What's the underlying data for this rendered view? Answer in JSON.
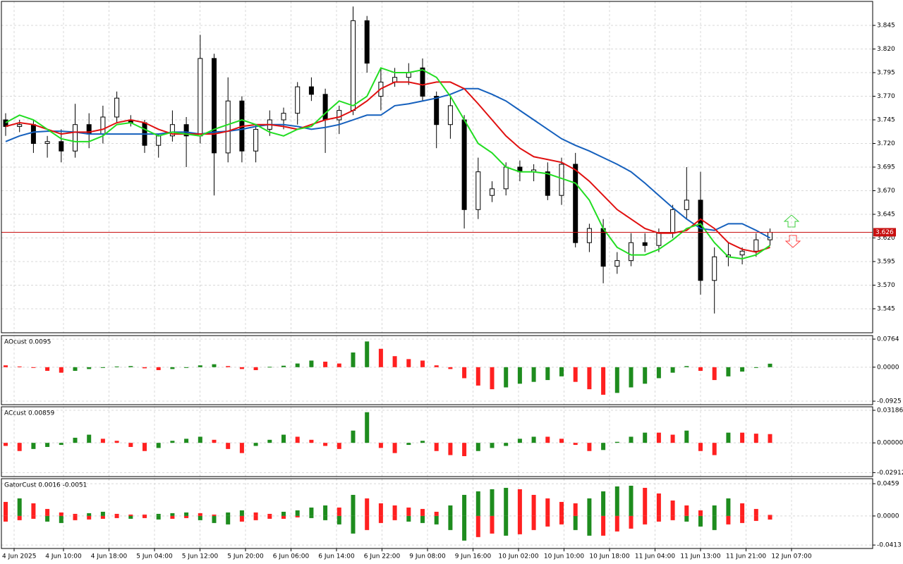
{
  "chart_data": [
    {
      "type": "candlestick",
      "open": [
        3.745,
        3.738,
        3.74,
        3.72,
        3.722,
        3.712,
        3.74,
        3.73,
        3.748,
        3.745,
        3.742,
        3.718,
        3.728,
        3.74,
        3.728,
        3.81,
        3.71,
        3.765,
        3.712,
        3.735,
        3.745,
        3.752,
        3.78,
        3.772,
        3.745,
        3.755,
        3.85,
        3.77,
        3.785,
        3.79,
        3.8,
        3.77,
        3.74,
        3.745,
        3.65,
        3.665,
        3.672,
        3.695,
        3.69,
        3.69,
        3.665,
        3.698,
        3.615,
        3.63,
        3.59,
        3.596,
        3.615,
        3.612,
        3.625,
        3.65,
        3.66,
        3.575,
        3.6,
        3.602,
        3.606,
        3.618
      ],
      "high": [
        3.752,
        3.745,
        3.745,
        3.728,
        3.735,
        3.762,
        3.752,
        3.76,
        3.775,
        3.75,
        3.745,
        3.73,
        3.755,
        3.748,
        3.835,
        3.815,
        3.79,
        3.77,
        3.74,
        3.755,
        3.758,
        3.785,
        3.79,
        3.778,
        3.76,
        3.865,
        3.855,
        3.8,
        3.8,
        3.805,
        3.81,
        3.775,
        3.77,
        3.75,
        3.705,
        3.68,
        3.7,
        3.702,
        3.698,
        3.7,
        3.705,
        3.71,
        3.635,
        3.64,
        3.605,
        3.625,
        3.625,
        3.63,
        3.655,
        3.695,
        3.69,
        3.61,
        3.615,
        3.61,
        3.625,
        3.63
      ],
      "low": [
        3.728,
        3.732,
        3.71,
        3.705,
        3.7,
        3.705,
        3.715,
        3.72,
        3.742,
        3.738,
        3.71,
        3.705,
        3.722,
        3.695,
        3.72,
        3.665,
        3.7,
        3.7,
        3.7,
        3.728,
        3.735,
        3.74,
        3.765,
        3.71,
        3.73,
        3.75,
        3.795,
        3.755,
        3.78,
        3.782,
        3.765,
        3.715,
        3.725,
        3.63,
        3.64,
        3.658,
        3.665,
        3.68,
        3.68,
        3.66,
        3.655,
        3.61,
        3.605,
        3.572,
        3.582,
        3.59,
        3.605,
        3.605,
        3.62,
        3.64,
        3.56,
        3.54,
        3.59,
        3.592,
        3.6,
        3.612
      ],
      "close": [
        3.738,
        3.74,
        3.72,
        3.722,
        3.712,
        3.74,
        3.73,
        3.748,
        3.768,
        3.742,
        3.718,
        3.728,
        3.74,
        3.728,
        3.81,
        3.71,
        3.765,
        3.712,
        3.735,
        3.745,
        3.752,
        3.78,
        3.772,
        3.745,
        3.755,
        3.85,
        3.805,
        3.785,
        3.79,
        3.795,
        3.77,
        3.74,
        3.76,
        3.65,
        3.69,
        3.672,
        3.695,
        3.69,
        3.692,
        3.665,
        3.698,
        3.615,
        3.63,
        3.59,
        3.596,
        3.615,
        3.612,
        3.625,
        3.65,
        3.66,
        3.575,
        3.6,
        3.602,
        3.606,
        3.618,
        3.626
      ],
      "series": [
        {
          "color": "#1560bd",
          "values": [
            3.722,
            3.728,
            3.732,
            3.733,
            3.733,
            3.732,
            3.73,
            3.73,
            3.73,
            3.73,
            3.73,
            3.73,
            3.732,
            3.732,
            3.73,
            3.732,
            3.733,
            3.735,
            3.738,
            3.74,
            3.74,
            3.738,
            3.735,
            3.737,
            3.74,
            3.745,
            3.75,
            3.75,
            3.76,
            3.762,
            3.765,
            3.768,
            3.772,
            3.778,
            3.778,
            3.772,
            3.765,
            3.755,
            3.745,
            3.735,
            3.725,
            3.718,
            3.712,
            3.705,
            3.698,
            3.69,
            3.678,
            3.665,
            3.652,
            3.64,
            3.63,
            3.628,
            3.635,
            3.635,
            3.628,
            3.62
          ]
        },
        {
          "color": "#e01010",
          "values": [
            3.738,
            3.742,
            3.74,
            3.735,
            3.73,
            3.732,
            3.732,
            3.735,
            3.742,
            3.745,
            3.742,
            3.735,
            3.73,
            3.73,
            3.73,
            3.73,
            3.733,
            3.738,
            3.74,
            3.74,
            3.738,
            3.735,
            3.74,
            3.745,
            3.748,
            3.755,
            3.765,
            3.778,
            3.785,
            3.785,
            3.782,
            3.785,
            3.785,
            3.778,
            3.762,
            3.745,
            3.728,
            3.715,
            3.706,
            3.703,
            3.7,
            3.692,
            3.68,
            3.665,
            3.65,
            3.64,
            3.63,
            3.625,
            3.625,
            3.628,
            3.64,
            3.63,
            3.615,
            3.608,
            3.605,
            3.61
          ]
        },
        {
          "color": "#22dd22",
          "values": [
            3.742,
            3.75,
            3.745,
            3.735,
            3.725,
            3.722,
            3.722,
            3.728,
            3.74,
            3.742,
            3.735,
            3.728,
            3.732,
            3.73,
            3.728,
            3.735,
            3.74,
            3.745,
            3.74,
            3.732,
            3.728,
            3.735,
            3.738,
            3.752,
            3.765,
            3.76,
            3.77,
            3.8,
            3.795,
            3.795,
            3.798,
            3.79,
            3.77,
            3.745,
            3.72,
            3.71,
            3.695,
            3.69,
            3.69,
            3.688,
            3.683,
            3.678,
            3.66,
            3.63,
            3.61,
            3.602,
            3.602,
            3.608,
            3.618,
            3.63,
            3.635,
            3.615,
            3.6,
            3.598,
            3.602,
            3.612
          ]
        }
      ],
      "up_color": "#ffffff",
      "down_color": "#000000",
      "last_price": 3.626,
      "last_price_color": "#c81010",
      "ylim": [
        3.5196,
        3.8704
      ],
      "yticks": [
        3.845,
        {
          "value": 3.82,
          "label": "3.820"
        },
        3.795,
        {
          "value": 3.77,
          "label": "3.770"
        },
        3.745,
        {
          "value": 3.72,
          "label": "3.720"
        },
        3.695,
        {
          "value": 3.67,
          "label": "3.670"
        },
        3.645,
        {
          "value": 3.62,
          "label": "3.620"
        },
        3.595,
        {
          "value": 3.57,
          "label": "3.570"
        },
        3.545
      ],
      "time_labels": [
        "4 Jun 2025",
        "4 Jun 10:00",
        "4 Jun 18:00",
        "5 Jun 04:00",
        "5 Jun 12:00",
        "5 Jun 20:00",
        "6 Jun 06:00",
        "6 Jun 14:00",
        "6 Jun 22:00",
        "9 Jun 08:00",
        "9 Jun 16:00",
        "10 Jun 02:00",
        "10 Jun 10:00",
        "10 Jun 18:00",
        "11 Jun 04:00",
        "11 Jun 13:00",
        "11 Jun 21:00",
        "12 Jun 07:00"
      ],
      "grid": true
    },
    {
      "type": "histogram",
      "title": "AOcust 0.0095",
      "series": [
        {
          "values": [
            0.005,
            0.002,
            -0.002,
            -0.01,
            -0.015,
            -0.01,
            -0.005,
            -0.002,
            0.002,
            0.003,
            -0.003,
            -0.008,
            -0.005,
            -0.002,
            0.005,
            0.008,
            0.003,
            -0.005,
            -0.008,
            0.001,
            0.004,
            0.01,
            0.018,
            0.015,
            0.01,
            0.04,
            0.07,
            0.05,
            0.03,
            0.022,
            0.018,
            0.005,
            -0.005,
            -0.03,
            -0.05,
            -0.06,
            -0.055,
            -0.045,
            -0.04,
            -0.035,
            -0.025,
            -0.04,
            -0.06,
            -0.075,
            -0.07,
            -0.055,
            -0.045,
            -0.03,
            -0.015,
            0.003,
            -0.01,
            -0.035,
            -0.025,
            -0.012,
            -0.002,
            0.0095
          ]
        }
      ],
      "up_color": "#1e8c1e",
      "down_color": "#ff2020",
      "ylim": [
        -0.102,
        0.086
      ],
      "yticks": [
        0.0764,
        {
          "value": 0,
          "label": "0.0000"
        },
        -0.0925
      ],
      "grid": true
    },
    {
      "type": "histogram",
      "title": "ACcust 0.00859",
      "series": [
        {
          "values": [
            -0.003,
            -0.008,
            -0.006,
            -0.004,
            -0.002,
            0.005,
            0.008,
            0.004,
            0.002,
            -0.004,
            -0.008,
            -0.005,
            0.002,
            0.004,
            0.006,
            0.003,
            -0.006,
            -0.01,
            -0.003,
            0.003,
            0.008,
            0.006,
            0.003,
            -0.003,
            -0.006,
            0.012,
            0.03,
            -0.005,
            -0.01,
            -0.002,
            0.002,
            -0.008,
            -0.012,
            -0.013,
            -0.008,
            -0.005,
            -0.003,
            0.004,
            0.006,
            0.006,
            0.004,
            -0.002,
            -0.008,
            -0.007,
            0.001,
            0.006,
            0.01,
            0.01,
            0.008,
            0.012,
            -0.008,
            -0.012,
            0.01,
            0.01,
            0.009,
            0.00859
          ]
        }
      ],
      "up_color": "#1e8c1e",
      "down_color": "#ff2020",
      "ylim": [
        -0.033,
        0.0353
      ],
      "yticks": [
        0.03186,
        {
          "value": 0,
          "label": "0.00000"
        },
        -0.02912
      ],
      "grid": true
    },
    {
      "type": "histogram",
      "title": "GatorCust 0.0016 -0.0051",
      "series": [
        {
          "values": [
            0.02,
            0.025,
            0.018,
            0.01,
            0.005,
            0.003,
            0.004,
            0.006,
            0.003,
            0.002,
            0.002,
            0.003,
            0.004,
            0.005,
            0.004,
            0.002,
            0.005,
            0.008,
            0.005,
            0.003,
            0.006,
            0.008,
            0.012,
            0.015,
            0.012,
            0.03,
            0.025,
            0.018,
            0.015,
            0.012,
            0.01,
            0.006,
            0.015,
            0.03,
            0.035,
            0.038,
            0.04,
            0.038,
            0.03,
            0.025,
            0.02,
            0.018,
            0.025,
            0.035,
            0.042,
            0.043,
            0.04,
            0.032,
            0.022,
            0.015,
            0.008,
            0.015,
            0.025,
            0.018,
            0.01,
            0.0016
          ]
        },
        {
          "values": [
            -0.008,
            -0.006,
            -0.004,
            -0.008,
            -0.01,
            -0.006,
            -0.005,
            -0.004,
            -0.003,
            -0.004,
            -0.003,
            -0.005,
            -0.004,
            -0.003,
            -0.006,
            -0.01,
            -0.012,
            -0.008,
            -0.006,
            -0.004,
            -0.004,
            -0.002,
            -0.003,
            -0.006,
            -0.012,
            -0.025,
            -0.02,
            -0.01,
            -0.006,
            -0.008,
            -0.01,
            -0.012,
            -0.02,
            -0.035,
            -0.03,
            -0.025,
            -0.028,
            -0.026,
            -0.02,
            -0.015,
            -0.012,
            -0.02,
            -0.028,
            -0.028,
            -0.022,
            -0.018,
            -0.012,
            -0.008,
            -0.006,
            -0.008,
            -0.015,
            -0.02,
            -0.012,
            -0.01,
            -0.007,
            -0.0051
          ]
        }
      ],
      "up_color": "#1e8c1e",
      "down_color": "#ff2020",
      "ylim": [
        -0.0462,
        0.053
      ],
      "yticks": [
        0.0459,
        {
          "value": 0,
          "label": "0.0000"
        },
        -0.0413
      ],
      "grid": true
    }
  ]
}
